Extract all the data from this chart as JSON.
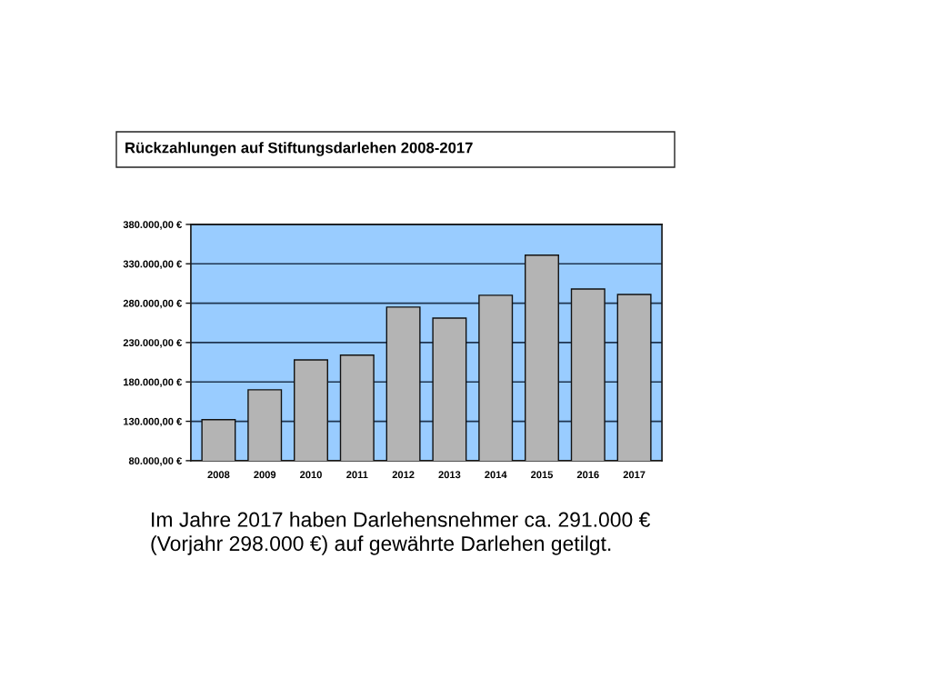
{
  "chart_data": {
    "type": "bar",
    "title": "Rückzahlungen auf Stiftungsdarlehen 2008-2017",
    "categories": [
      "2008",
      "2009",
      "2010",
      "2011",
      "2012",
      "2013",
      "2014",
      "2015",
      "2016",
      "2017"
    ],
    "values": [
      132000,
      170000,
      208000,
      214000,
      275000,
      261000,
      290000,
      341000,
      298000,
      291000
    ],
    "color": "#b4b4b4",
    "ylim": [
      80000,
      380000
    ],
    "yticks": [
      {
        "value": 80000,
        "label": "80.000,00 €"
      },
      {
        "value": 130000,
        "label": "130.000,00 €"
      },
      {
        "value": 180000,
        "label": "180.000,00 €"
      },
      {
        "value": 230000,
        "label": "230.000,00 €"
      },
      {
        "value": 280000,
        "label": "280.000,00 €"
      },
      {
        "value": 330000,
        "label": "330.000,00 €"
      },
      {
        "value": 380000,
        "label": "380.000,00 €"
      }
    ],
    "grid": "y",
    "legend": false,
    "annotations": [
      "Im Jahre 2017 haben Darlehensnehmer ca. 291.000 € (Vorjahr 298.000 €) auf gewährte Darlehen getilgt."
    ]
  }
}
